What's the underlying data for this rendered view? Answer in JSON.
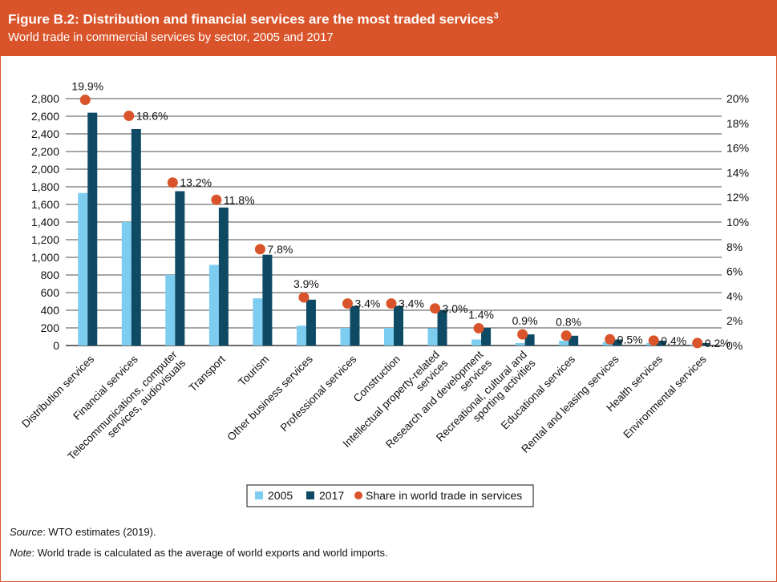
{
  "header": {
    "title": "Figure B.2: Distribution and financial services are the most traded services",
    "title_sup": "3",
    "subtitle": "World trade in commercial services by sector, 2005 and 2017"
  },
  "chart_data": {
    "type": "bar",
    "categories": [
      "Distribution services",
      "Financial services",
      "Telecommunications, computer services, audiovisuals",
      "Transport",
      "Tourism",
      "Other business services",
      "Professional services",
      "Construction",
      "Intellectual property-related services",
      "Research and development services",
      "Recreational, cultural and sporting activities",
      "Educational services",
      "Rental and leasing services",
      "Health services",
      "Environmental services"
    ],
    "category_lines": [
      [
        "Distribution services"
      ],
      [
        "Financial services"
      ],
      [
        "Telecommunications, computer",
        "services, audiovisuals"
      ],
      [
        "Transport"
      ],
      [
        "Tourism"
      ],
      [
        "Other business services"
      ],
      [
        "Professional services"
      ],
      [
        "Construction"
      ],
      [
        "Intellectual property-related",
        "services"
      ],
      [
        "Research and development",
        "services"
      ],
      [
        "Recreational, cultural and",
        "sporting activities"
      ],
      [
        "Educational services"
      ],
      [
        "Rental and leasing services"
      ],
      [
        "Health services"
      ],
      [
        "Environmental services"
      ]
    ],
    "series": [
      {
        "name": "2005",
        "color": "#7dcdf0",
        "axis": "left",
        "values": [
          1730,
          1400,
          800,
          915,
          535,
          225,
          200,
          200,
          197,
          68,
          28,
          55,
          40,
          28,
          12
        ]
      },
      {
        "name": "2017",
        "color": "#0e4a64",
        "axis": "left",
        "values": [
          2640,
          2455,
          1750,
          1565,
          1030,
          520,
          450,
          450,
          400,
          200,
          126,
          111,
          68,
          55,
          28
        ]
      },
      {
        "name": "Share in world trade in services",
        "color": "#d9542a",
        "axis": "right",
        "type": "scatter",
        "values": [
          19.9,
          18.6,
          13.2,
          11.8,
          7.8,
          3.9,
          3.4,
          3.4,
          3.0,
          1.4,
          0.9,
          0.8,
          0.5,
          0.4,
          0.2
        ],
        "labels": [
          "19.9%",
          "18.6%",
          "13.2%",
          "11.8%",
          "7.8%",
          "3.9%",
          "3.4%",
          "3.4%",
          "3.0%",
          "1.4%",
          "0.9%",
          "0.8%",
          "0.5%",
          "0.4%",
          "0.2%"
        ]
      }
    ],
    "y_left": {
      "lim": [
        0,
        2800
      ],
      "ticks": [
        "0",
        "200",
        "400",
        "600",
        "800",
        "1,000",
        "1,200",
        "1,400",
        "1,600",
        "1,800",
        "2,000",
        "2,200",
        "2,400",
        "2,600",
        "2,800"
      ]
    },
    "y_right": {
      "lim": [
        0,
        20
      ],
      "ticks": [
        "0%",
        "2%",
        "4%",
        "6%",
        "8%",
        "10%",
        "12%",
        "14%",
        "16%",
        "18%",
        "20%"
      ]
    },
    "grid": true,
    "legend_position": "bottom"
  },
  "footer": {
    "source_label": "Source",
    "source_text": ": WTO estimates (2019).",
    "note_label": "Note",
    "note_text": ": World trade is calculated as the average of world exports and world imports."
  }
}
